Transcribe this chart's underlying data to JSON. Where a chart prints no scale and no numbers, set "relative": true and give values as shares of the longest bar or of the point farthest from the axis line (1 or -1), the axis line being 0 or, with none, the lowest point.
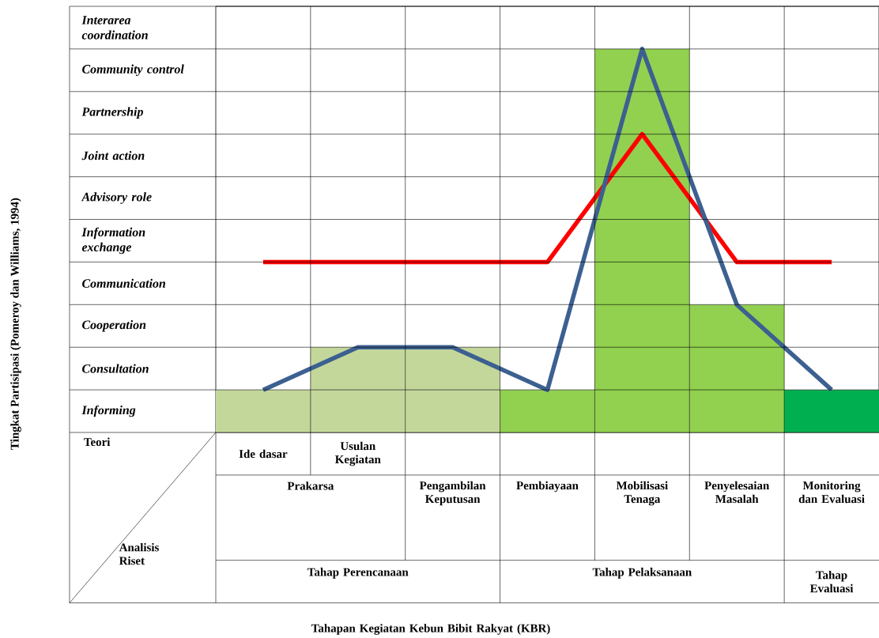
{
  "chart_data": {
    "type": "bar",
    "relative": true,
    "categories": [
      "Ide dasar",
      "Usulan Kegiatan",
      "Pengambilan Keputusan",
      "Pembiayaan",
      "Mobilisasi Tenaga",
      "Penyelesaian Masalah",
      "Monitoring dan Evaluasi"
    ],
    "series": [
      {
        "colors": [
          "#c4d79b",
          "#c4d79b",
          "#c4d79b",
          "#92d050",
          "#92d050",
          "#92d050",
          "#00b050"
        ],
        "values": [
          0.111,
          0.222,
          0.222,
          0.111,
          1,
          0.333,
          0.111
        ]
      },
      {
        "type": "line",
        "color": "#ff0000",
        "values": [
          0.444,
          0.444,
          0.444,
          0.444,
          0.778,
          0.444,
          0.444
        ]
      },
      {
        "type": "line",
        "color": "#3c6090",
        "values": [
          0.111,
          0.222,
          0.222,
          0.111,
          1,
          0.333,
          0.111
        ]
      }
    ],
    "grid": true,
    "annotations": [
      "Interarea coordination",
      "Community control",
      "Partnership",
      "Joint action",
      "Advisory role",
      "Information exchange",
      "Communication",
      "Cooperation",
      "Consultation",
      "Informing",
      "Teori",
      "Analisis Riset",
      "Prakarsa",
      "Tahap Perencanaan",
      "Tahap Pelaksanaan",
      "Tahap Evaluasi",
      "Tahapan Kegiatan Kebun Bibit Rakyat (KBR)",
      "Tingkat Partisipasi (Pomeroy dan Williams, 1994)"
    ]
  }
}
